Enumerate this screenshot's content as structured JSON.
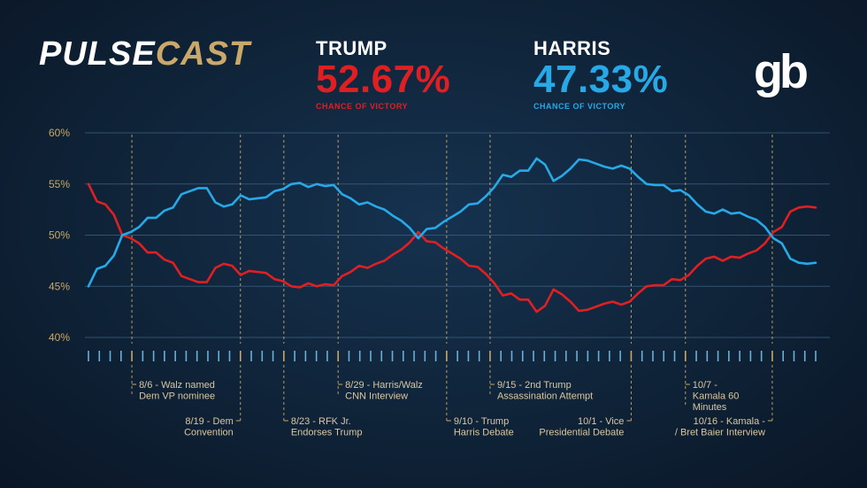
{
  "brand": {
    "logo_part1": "PULSE",
    "logo_part2": "CAST",
    "corner_logo": "gb"
  },
  "candidates": [
    {
      "name": "TRUMP",
      "pct": "52.67%",
      "sub": "CHANCE OF VICTORY",
      "color": "#e01f22"
    },
    {
      "name": "HARRIS",
      "pct": "47.33%",
      "sub": "CHANCE OF VICTORY",
      "color": "#27a9e8"
    }
  ],
  "colors": {
    "background": "#12283f",
    "grid": "#3d5e7d",
    "event_line": "#c9a86a",
    "tick": "#6ab0d8",
    "tick_event": "#c9a86a",
    "axis_text": "#c9a86a"
  },
  "chart_data": {
    "type": "line",
    "y_tick_labels": [
      "60%",
      "55%",
      "50%",
      "45%",
      "40%"
    ],
    "ylim": [
      40,
      60
    ],
    "grid": true,
    "n_ticks": 68,
    "series": [
      {
        "name": "Trump",
        "color": "#e01f22",
        "values": [
          55.0,
          53.3,
          53.0,
          52.0,
          50.0,
          49.7,
          49.2,
          48.3,
          48.3,
          47.6,
          47.3,
          46.0,
          45.7,
          45.4,
          45.4,
          46.8,
          47.2,
          47.0,
          46.1,
          46.5,
          46.4,
          46.3,
          45.7,
          45.5,
          45.0,
          44.9,
          45.3,
          45.0,
          45.2,
          45.1,
          46.0,
          46.4,
          47.0,
          46.8,
          47.2,
          47.5,
          48.1,
          48.6,
          49.3,
          50.3,
          49.4,
          49.3,
          48.7,
          48.2,
          47.7,
          47.0,
          46.9,
          46.2,
          45.3,
          44.1,
          44.3,
          43.7,
          43.7,
          42.5,
          43.1,
          44.7,
          44.2,
          43.5,
          42.6,
          42.7,
          43.0,
          43.3,
          43.5,
          43.2,
          43.5,
          44.3,
          45.0,
          45.1,
          45.1,
          45.7,
          45.6,
          46.1,
          47.0,
          47.7,
          47.9,
          47.5,
          47.9,
          47.8,
          48.2,
          48.5,
          49.2,
          50.3,
          50.8,
          52.3,
          52.7,
          52.8,
          52.7
        ]
      },
      {
        "name": "Harris",
        "color": "#27a9e8",
        "values": [
          45.0,
          46.7,
          47.0,
          48.0,
          50.0,
          50.3,
          50.8,
          51.7,
          51.7,
          52.4,
          52.7,
          54.0,
          54.3,
          54.6,
          54.6,
          53.2,
          52.8,
          53.0,
          53.9,
          53.5,
          53.6,
          53.7,
          54.3,
          54.5,
          55.0,
          55.1,
          54.7,
          55.0,
          54.8,
          54.9,
          54.0,
          53.6,
          53.0,
          53.2,
          52.8,
          52.5,
          51.9,
          51.4,
          50.7,
          49.7,
          50.6,
          50.7,
          51.3,
          51.8,
          52.3,
          53.0,
          53.1,
          53.8,
          54.7,
          55.9,
          55.7,
          56.3,
          56.3,
          57.5,
          56.9,
          55.3,
          55.8,
          56.5,
          57.4,
          57.3,
          57.0,
          56.7,
          56.5,
          56.8,
          56.5,
          55.7,
          55.0,
          54.9,
          54.9,
          54.3,
          54.4,
          53.9,
          53.0,
          52.3,
          52.1,
          52.5,
          52.1,
          52.2,
          51.8,
          51.5,
          50.8,
          49.7,
          49.2,
          47.7,
          47.3,
          47.2,
          47.3
        ]
      }
    ],
    "events": [
      {
        "label": [
          "8/6 - Walz named",
          "Dem VP nominee"
        ],
        "tick": 4,
        "pos": "upper",
        "align": "left"
      },
      {
        "label": [
          "8/19 - Dem",
          "Convention"
        ],
        "tick": 14,
        "pos": "lower",
        "align": "right"
      },
      {
        "label": [
          "8/23 - RFK Jr.",
          "Endorses Trump"
        ],
        "tick": 18,
        "pos": "lower",
        "align": "left"
      },
      {
        "label": [
          "8/29 - Harris/Walz",
          "CNN Interview"
        ],
        "tick": 23,
        "pos": "upper",
        "align": "left"
      },
      {
        "label": [
          "9/10 - Trump",
          "Harris Debate"
        ],
        "tick": 33,
        "pos": "lower",
        "align": "left"
      },
      {
        "label": [
          "9/15 - 2nd Trump",
          "Assassination Attempt"
        ],
        "tick": 37,
        "pos": "upper",
        "align": "left"
      },
      {
        "label": [
          "10/1 - Vice",
          "Presidential Debate"
        ],
        "tick": 50,
        "pos": "lower",
        "align": "right"
      },
      {
        "label": [
          "10/7 -",
          "Kamala 60",
          "Minutes"
        ],
        "tick": 55,
        "pos": "upper",
        "align": "left"
      },
      {
        "label": [
          "10/16 - Kamala -",
          "/ Bret Baier Interview"
        ],
        "tick": 63,
        "pos": "lower",
        "align": "right"
      }
    ]
  }
}
